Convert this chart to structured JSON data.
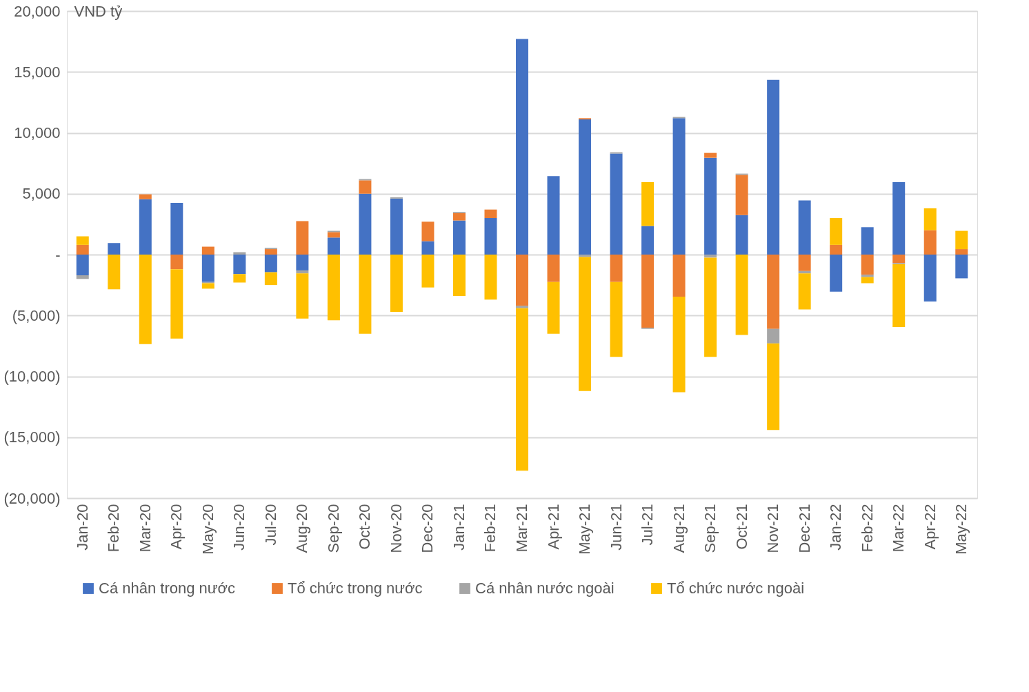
{
  "chart_data": {
    "type": "bar",
    "stacked": true,
    "ylabel": "VND tỷ",
    "categories": [
      "Jan-20",
      "Feb-20",
      "Mar-20",
      "Apr-20",
      "May-20",
      "Jun-20",
      "Jul-20",
      "Aug-20",
      "Sep-20",
      "Oct-20",
      "Nov-20",
      "Dec-20",
      "Jan-21",
      "Feb-21",
      "Mar-21",
      "Apr-21",
      "May-21",
      "Jun-21",
      "Jul-21",
      "Aug-21",
      "Sep-21",
      "Oct-21",
      "Nov-21",
      "Dec-21",
      "Jan-22",
      "Feb-22",
      "Mar-22",
      "Apr-22",
      "May-22"
    ],
    "series": [
      {
        "name": "Cá nhân trong nước",
        "color": "#4472c4",
        "values": [
          -1700,
          950,
          4550,
          4250,
          -2250,
          -1600,
          -1450,
          -1300,
          1400,
          5000,
          4600,
          1100,
          2800,
          3000,
          17700,
          6450,
          11100,
          8300,
          2350,
          11200,
          7950,
          3250,
          14350,
          4450,
          -3050,
          2250,
          5950,
          -3850,
          -1950
        ]
      },
      {
        "name": "Tổ chức trong nước",
        "color": "#ed7d31",
        "values": [
          800,
          null,
          400,
          -1200,
          650,
          null,
          450,
          2750,
          450,
          1100,
          null,
          1600,
          600,
          700,
          -4200,
          -2250,
          100,
          -2250,
          -6000,
          -3450,
          400,
          3300,
          -6100,
          -1350,
          800,
          -1650,
          -700,
          2000,
          450
        ]
      },
      {
        "name": "Cá nhân nước ngoài",
        "color": "#a5a5a5",
        "values": [
          -300,
          null,
          null,
          null,
          -100,
          200,
          100,
          -250,
          100,
          100,
          100,
          null,
          100,
          null,
          -200,
          null,
          -200,
          100,
          -100,
          100,
          -250,
          100,
          -1200,
          -200,
          null,
          -200,
          -100,
          null,
          null
        ]
      },
      {
        "name": "Tổ chức nước ngoài",
        "color": "#ffc000",
        "values": [
          700,
          -2850,
          -7350,
          -5700,
          -450,
          -700,
          -1050,
          -3700,
          -5400,
          -6500,
          -4700,
          -2700,
          -3400,
          -3700,
          -13350,
          -4250,
          -11000,
          -6150,
          3600,
          -7850,
          -8150,
          -6600,
          -7100,
          -2950,
          2200,
          -500,
          -5150,
          1800,
          1500
        ]
      }
    ],
    "ylim": [
      -20000,
      20000
    ],
    "yticks": [
      {
        "value": -20000,
        "label": "(20,000)"
      },
      {
        "value": -15000,
        "label": "(15,000)"
      },
      {
        "value": -10000,
        "label": "(10,000)"
      },
      {
        "value": -5000,
        "label": "(5,000)"
      },
      {
        "value": 0,
        "label": "-"
      },
      {
        "value": 5000,
        "label": "5,000"
      },
      {
        "value": 10000,
        "label": "10,000"
      },
      {
        "value": 15000,
        "label": "15,000"
      },
      {
        "value": 20000,
        "label": "20,000"
      }
    ],
    "grid": "y",
    "legend": "bottom"
  }
}
